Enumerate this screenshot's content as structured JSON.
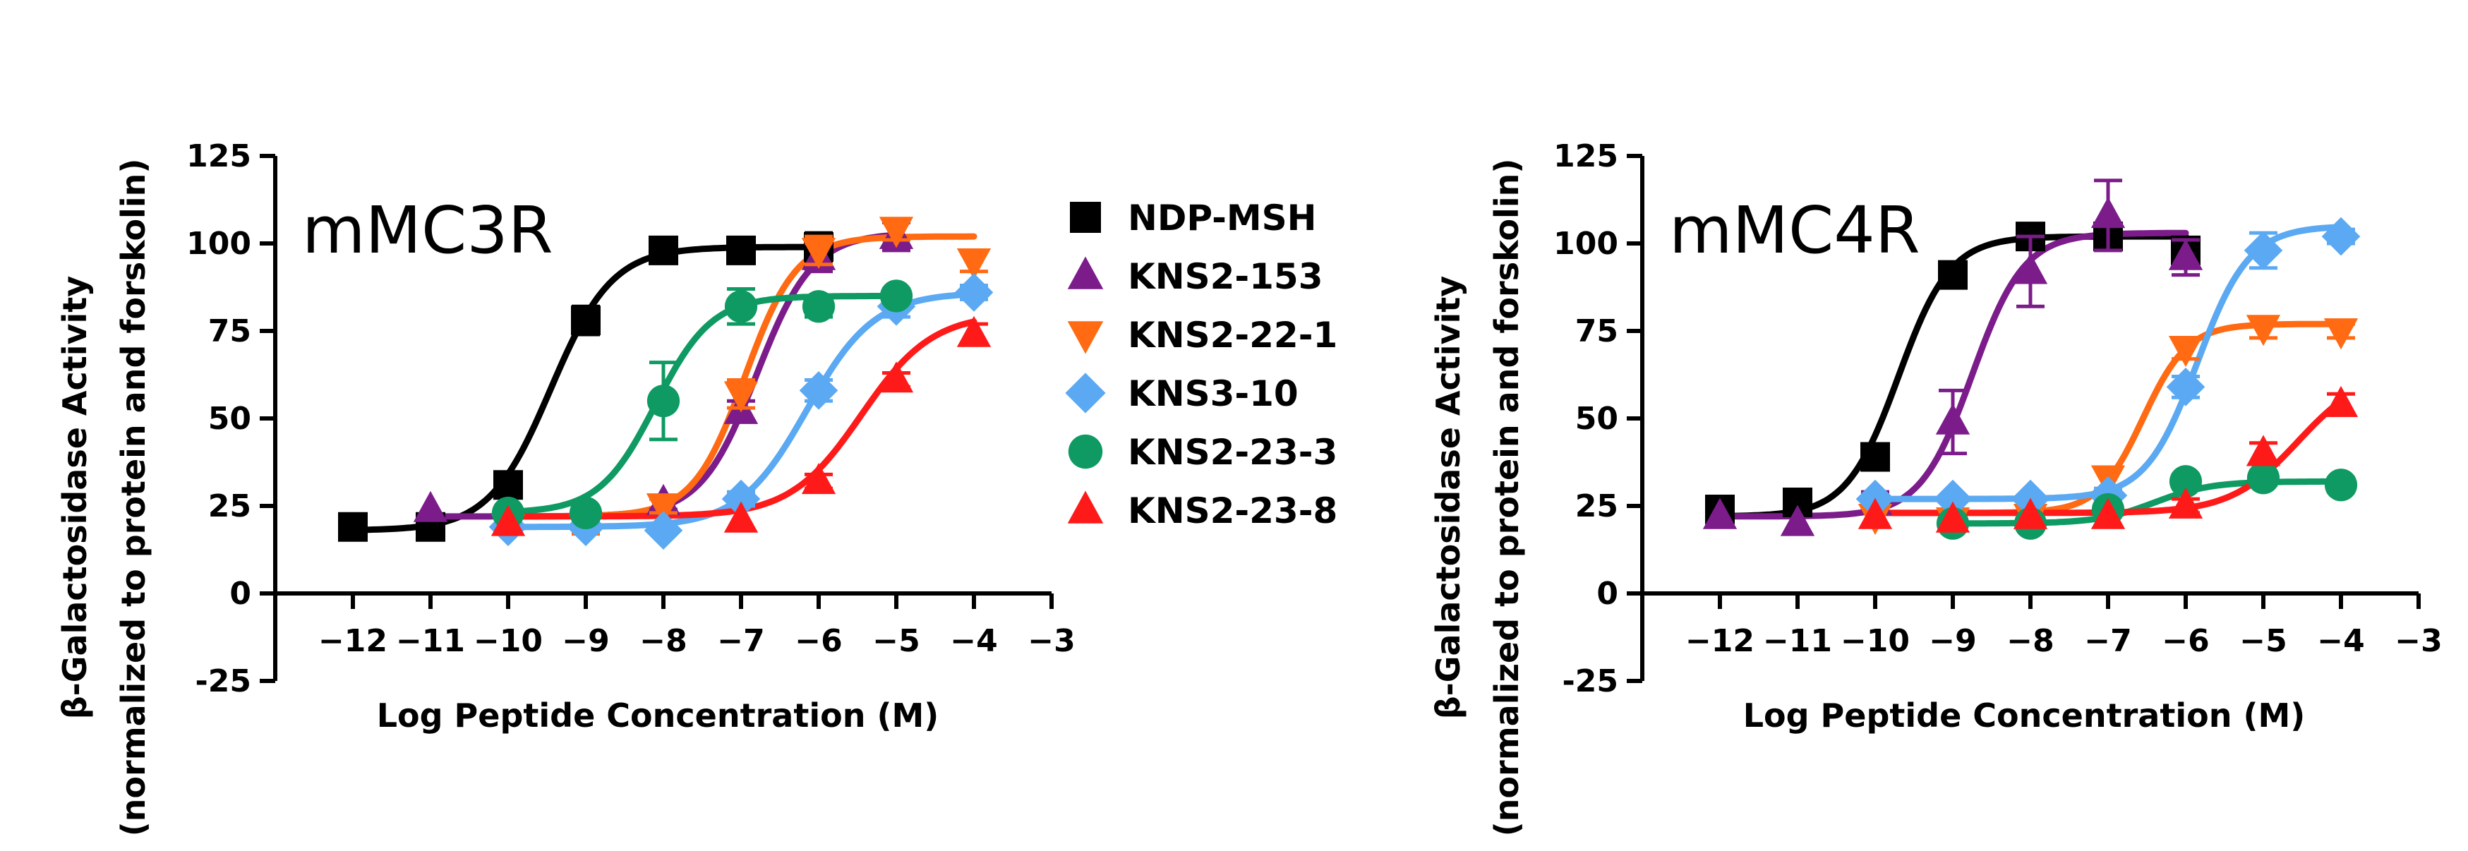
{
  "figure": {
    "legend_position": "between-panels",
    "legend": [
      {
        "name": "NDP-MSH",
        "color": "#000000",
        "marker": "square"
      },
      {
        "name": "KNS2-153",
        "color": "#7B1C8A",
        "marker": "triangle-up"
      },
      {
        "name": "KNS2-22-1",
        "color": "#FF6A13",
        "marker": "triangle-down"
      },
      {
        "name": "KNS3-10",
        "color": "#5AA9F2",
        "marker": "diamond"
      },
      {
        "name": "KNS2-23-3",
        "color": "#0E9A62",
        "marker": "circle"
      },
      {
        "name": "KNS2-23-8",
        "color": "#FF1A1A",
        "marker": "triangle-up"
      }
    ]
  },
  "chart_data": [
    {
      "type": "scatter",
      "title": "mMC3R",
      "xlabel": "Log Peptide Concentration (M)",
      "ylabel_line1": "β-Galactosidase Activity",
      "ylabel_line2": "(normalized to protein and forskolin)",
      "xlim": [
        -13,
        -3
      ],
      "ylim": [
        -25,
        125
      ],
      "xticks": [
        -12,
        -11,
        -10,
        -9,
        -8,
        -7,
        -6,
        -5,
        -4,
        -3
      ],
      "yticks": [
        -25,
        0,
        25,
        50,
        75,
        100,
        125
      ],
      "series": [
        {
          "name": "NDP-MSH",
          "x": [
            -12,
            -11,
            -10,
            -9,
            -8,
            -7,
            -6
          ],
          "y": [
            19,
            19,
            31,
            78,
            98,
            98,
            99
          ],
          "err": [
            0,
            0,
            3,
            4,
            3,
            3,
            4
          ],
          "fit": {
            "bottom": 18,
            "top": 99,
            "logec50": -9.45,
            "hill": 1.1
          }
        },
        {
          "name": "KNS2-153",
          "x": [
            -11,
            -10,
            -9,
            -8,
            -7,
            -6,
            -5
          ],
          "y": [
            24,
            22,
            22,
            26,
            52,
            96,
            102
          ],
          "err": [
            0,
            2,
            2,
            2,
            3,
            4,
            4
          ],
          "fit": {
            "bottom": 22,
            "top": 103,
            "logec50": -6.8,
            "hill": 1.2
          }
        },
        {
          "name": "KNS2-22-1",
          "x": [
            -10,
            -9,
            -8,
            -7,
            -6,
            -5,
            -4
          ],
          "y": [
            19,
            19,
            25,
            57,
            98,
            104,
            95
          ],
          "err": [
            0,
            2,
            2,
            4,
            4,
            3,
            3
          ],
          "fit": {
            "bottom": 22,
            "top": 102,
            "logec50": -6.95,
            "hill": 1.3
          }
        },
        {
          "name": "KNS3-10",
          "x": [
            -10,
            -9,
            -8,
            -7,
            -6,
            -5,
            -4
          ],
          "y": [
            19,
            19,
            18,
            27,
            58,
            82,
            86
          ],
          "err": [
            0,
            0,
            0,
            2,
            3,
            3,
            2
          ],
          "fit": {
            "bottom": 19,
            "top": 86,
            "logec50": -6.15,
            "hill": 1.0
          }
        },
        {
          "name": "KNS2-23-3",
          "x": [
            -10,
            -9,
            -8,
            -7,
            -6,
            -5
          ],
          "y": [
            23,
            23,
            55,
            82,
            82,
            85
          ],
          "err": [
            0,
            0,
            11,
            5,
            3,
            2
          ],
          "fit": {
            "bottom": 23,
            "top": 85,
            "logec50": -8.1,
            "hill": 1.2
          }
        },
        {
          "name": "KNS2-23-8",
          "x": [
            -10,
            -7,
            -6,
            -5,
            -4
          ],
          "y": [
            20,
            21,
            32,
            61,
            74
          ],
          "err": [
            0,
            0,
            2,
            2,
            3
          ],
          "fit": {
            "bottom": 22,
            "top": 80,
            "logec50": -5.45,
            "hill": 0.95
          }
        }
      ]
    },
    {
      "type": "scatter",
      "title": "mMC4R",
      "xlabel": "Log Peptide Concentration (M)",
      "ylabel_line1": "β-Galactosidase Activity",
      "ylabel_line2": "(normalized to protein and forskolin)",
      "xlim": [
        -13,
        -3
      ],
      "ylim": [
        -25,
        125
      ],
      "xticks": [
        -12,
        -11,
        -10,
        -9,
        -8,
        -7,
        -6,
        -5,
        -4,
        -3
      ],
      "yticks": [
        -25,
        0,
        25,
        50,
        75,
        100,
        125
      ],
      "series": [
        {
          "name": "NDP-MSH",
          "x": [
            -12,
            -11,
            -10,
            -9,
            -8,
            -7,
            -6
          ],
          "y": [
            24,
            26,
            39,
            91,
            102,
            102,
            98
          ],
          "err": [
            0,
            0,
            3,
            3,
            3,
            3,
            3
          ],
          "fit": {
            "bottom": 22,
            "top": 102,
            "logec50": -9.7,
            "hill": 1.3
          }
        },
        {
          "name": "KNS2-153",
          "x": [
            -12,
            -11,
            -10,
            -9,
            -8,
            -7,
            -6
          ],
          "y": [
            22,
            20,
            26,
            49,
            92,
            108,
            96
          ],
          "err": [
            0,
            0,
            3,
            9,
            10,
            10,
            5
          ],
          "fit": {
            "bottom": 22,
            "top": 103,
            "logec50": -8.75,
            "hill": 1.3
          }
        },
        {
          "name": "KNS2-22-1",
          "x": [
            -10,
            -9,
            -8,
            -7,
            -6,
            -5,
            -4
          ],
          "y": [
            22,
            21,
            22,
            33,
            70,
            76,
            75
          ],
          "err": [
            0,
            0,
            0,
            3,
            3,
            3,
            2
          ],
          "fit": {
            "bottom": 23,
            "top": 77,
            "logec50": -6.55,
            "hill": 1.5
          }
        },
        {
          "name": "KNS3-10",
          "x": [
            -10,
            -9,
            -8,
            -7,
            -6,
            -5,
            -4
          ],
          "y": [
            27,
            27,
            27,
            28,
            59,
            98,
            102
          ],
          "err": [
            0,
            0,
            0,
            2,
            3,
            5,
            2
          ],
          "fit": {
            "bottom": 27,
            "top": 105,
            "logec50": -5.85,
            "hill": 1.3
          }
        },
        {
          "name": "KNS2-23-3",
          "x": [
            -9,
            -8,
            -7,
            -6,
            -5,
            -4
          ],
          "y": [
            20,
            20,
            24,
            32,
            33,
            31
          ],
          "err": [
            0,
            0,
            0,
            2,
            2,
            2
          ],
          "fit": {
            "bottom": 20,
            "top": 32,
            "logec50": -6.4,
            "hill": 1.2
          }
        },
        {
          "name": "KNS2-23-8",
          "x": [
            -10,
            -9,
            -8,
            -7,
            -6,
            -5,
            -4
          ],
          "y": [
            22,
            21,
            22,
            22,
            25,
            40,
            54
          ],
          "err": [
            0,
            0,
            0,
            0,
            2,
            3,
            3
          ],
          "fit": {
            "bottom": 23,
            "top": 64,
            "logec50": -4.55,
            "hill": 1.0
          }
        }
      ]
    }
  ]
}
